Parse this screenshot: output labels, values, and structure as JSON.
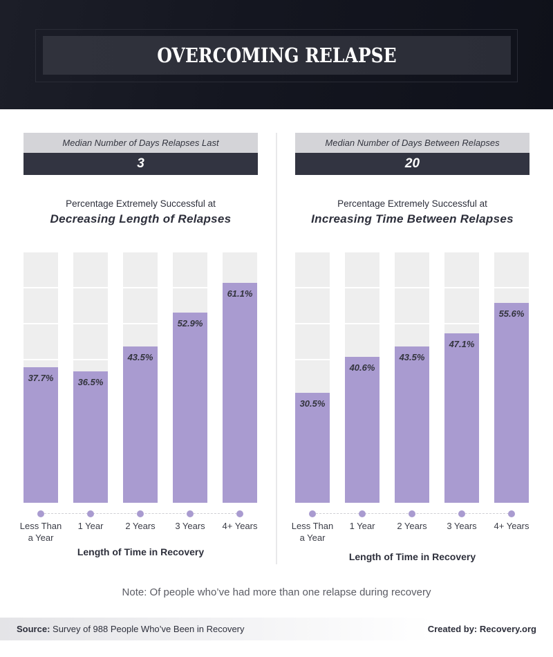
{
  "header": {
    "title": "OVERCOMING RELAPSE"
  },
  "panels": [
    {
      "stat_label": "Median Number of Days Relapses Last",
      "stat_value": "3",
      "chart_subtitle": "Percentage Extremely Successful at",
      "chart_title": "Decreasing Length of Relapses",
      "axis_title": "Length of Time in Recovery",
      "categories": [
        "Less Than a Year",
        "1 Year",
        "2 Years",
        "3 Years",
        "4+ Years"
      ],
      "tick_labels": [
        {
          "line1": "Less Than",
          "line2": "a Year"
        },
        {
          "line1": "1 Year",
          "line2": ""
        },
        {
          "line1": "2 Years",
          "line2": ""
        },
        {
          "line1": "3 Years",
          "line2": ""
        },
        {
          "line1": "4+ Years",
          "line2": ""
        }
      ],
      "values": [
        37.7,
        36.5,
        43.5,
        52.9,
        61.1
      ],
      "value_labels": [
        "37.7%",
        "36.5%",
        "43.5%",
        "52.9%",
        "61.1%"
      ]
    },
    {
      "stat_label": "Median Number of Days Between Relapses",
      "stat_value": "20",
      "chart_subtitle": "Percentage Extremely Successful at",
      "chart_title": "Increasing Time Between Relapses",
      "axis_title": "Length of Time in Recovery",
      "categories": [
        "Less Than a Year",
        "1 Year",
        "2 Years",
        "3 Years",
        "4+ Years"
      ],
      "tick_labels": [
        {
          "line1": "Less Than",
          "line2": "a Year"
        },
        {
          "line1": "1 Year",
          "line2": ""
        },
        {
          "line1": "2 Years",
          "line2": ""
        },
        {
          "line1": "3 Years",
          "line2": ""
        },
        {
          "line1": "4+ Years",
          "line2": ""
        }
      ],
      "values": [
        30.5,
        40.6,
        43.5,
        47.1,
        55.6
      ],
      "value_labels": [
        "30.5%",
        "40.6%",
        "43.5%",
        "47.1%",
        "55.6%"
      ]
    }
  ],
  "note": "Note: Of people who’ve had more than one relapse during recovery",
  "footer": {
    "source_label": "Source:",
    "source_text": " Survey of 988 People Who’ve Been in Recovery",
    "credit": "Created by: Recovery.org"
  },
  "colors": {
    "bar": "#a99bd0",
    "track": "#eeeeee",
    "header_bg": "#141620",
    "stat_label_bg": "#d4d4d8",
    "stat_value_bg": "#323441"
  },
  "chart_data": [
    {
      "type": "bar",
      "title": "Percentage Extremely Successful at Decreasing Length of Relapses",
      "xlabel": "Length of Time in Recovery",
      "ylabel": "",
      "categories": [
        "Less Than a Year",
        "1 Year",
        "2 Years",
        "3 Years",
        "4+ Years"
      ],
      "values": [
        37.7,
        36.5,
        43.5,
        52.9,
        61.1
      ],
      "ylim": [
        0,
        70
      ],
      "grid": true,
      "unit": "%"
    },
    {
      "type": "bar",
      "title": "Percentage Extremely Successful at Increasing Time Between Relapses",
      "xlabel": "Length of Time in Recovery",
      "ylabel": "",
      "categories": [
        "Less Than a Year",
        "1 Year",
        "2 Years",
        "3 Years",
        "4+ Years"
      ],
      "values": [
        30.5,
        40.6,
        43.5,
        47.1,
        55.6
      ],
      "ylim": [
        0,
        70
      ],
      "grid": true,
      "unit": "%"
    }
  ]
}
